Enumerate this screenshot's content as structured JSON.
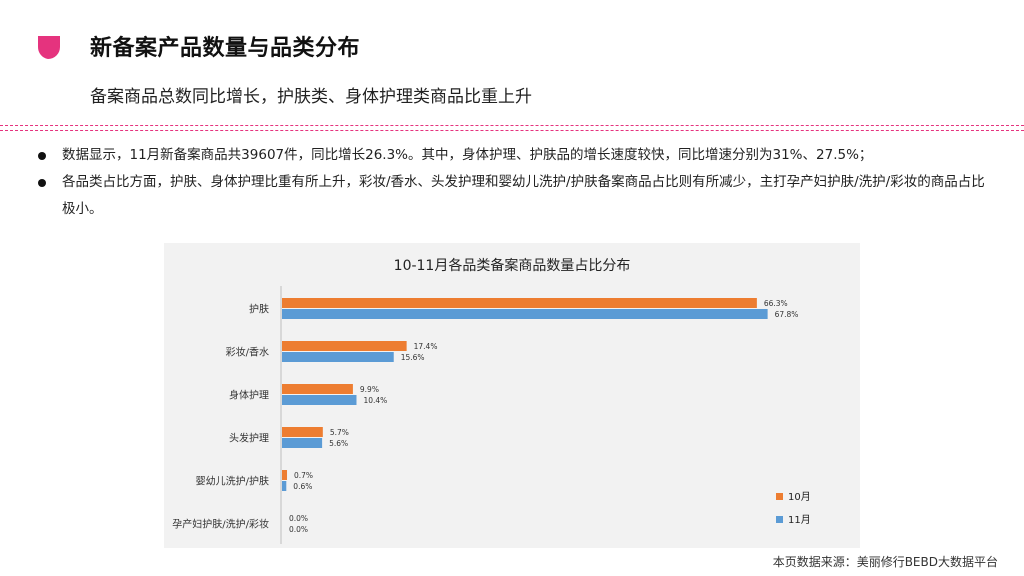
{
  "header": {
    "title": "新备案产品数量与品类分布",
    "subtitle": "备案商品总数同比增长，护肤类、身体护理类商品比重上升",
    "logo_icon": "pink-petal-icon",
    "accent_color": "#e5337e"
  },
  "bullets": [
    "数据显示，11月新备案商品共39607件，同比增长26.3%。其中，身体护理、护肤品的增长速度较快，同比增速分别为31%、27.5%；",
    "各品类占比方面，护肤、身体护理比重有所上升，彩妆/香水、头发护理和婴幼儿洗护/护肤备案商品占比则有所减少，主打孕产妇护肤/洗护/彩妆的商品占比极小。"
  ],
  "chart_data": {
    "type": "bar",
    "orientation": "horizontal",
    "title": "10-11月各品类备案商品数量占比分布",
    "categories": [
      "护肤",
      "彩妆/香水",
      "身体护理",
      "头发护理",
      "婴幼儿洗护/护肤",
      "孕产妇护肤/洗护/彩妆"
    ],
    "series": [
      {
        "name": "10月",
        "color": "#ed7d31",
        "values": [
          66.3,
          17.4,
          9.9,
          5.7,
          0.7,
          0.0
        ],
        "labels": [
          "66.3%",
          "17.4%",
          "9.9%",
          "5.7%",
          "0.7%",
          "0.0%"
        ]
      },
      {
        "name": "11月",
        "color": "#5b9bd5",
        "values": [
          67.8,
          15.6,
          10.4,
          5.6,
          0.6,
          0.0
        ],
        "labels": [
          "67.8%",
          "15.6%",
          "10.4%",
          "5.6%",
          "0.6%",
          "0.0%"
        ]
      }
    ],
    "xlim": [
      0,
      80
    ],
    "grid": false,
    "legend_position": "bottom-right"
  },
  "footer": {
    "source": "本页数据来源：美丽修行BEBD大数据平台"
  }
}
